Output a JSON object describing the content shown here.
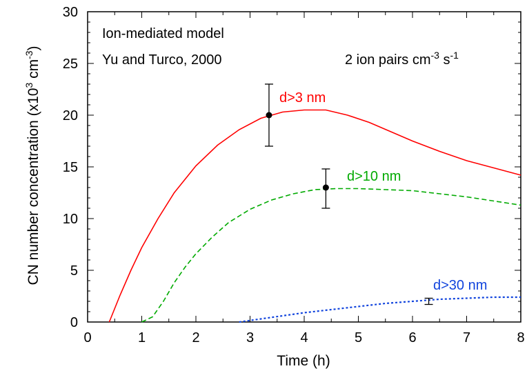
{
  "chart_data": {
    "type": "line",
    "xlabel": "Time (h)",
    "ylabel": "CN number concentration (x10",
    "ylabel_sup1": "3",
    "ylabel_mid": " cm",
    "ylabel_sup2": "-3",
    "ylabel_end": ")",
    "xlim": [
      0,
      8
    ],
    "ylim": [
      0,
      30
    ],
    "xticks": [
      "0",
      "1",
      "2",
      "3",
      "4",
      "5",
      "6",
      "7",
      "8"
    ],
    "yticks": [
      "0",
      "5",
      "10",
      "15",
      "20",
      "25",
      "30"
    ],
    "annotations": {
      "model_line1": "Ion-mediated model",
      "model_line2": "Yu and Turco, 2000",
      "rate_prefix": "2 ion pairs cm",
      "rate_sup1": "-3",
      "rate_mid": " s",
      "rate_sup2": "-1"
    },
    "series": [
      {
        "name": "d>3 nm",
        "color": "#ff0000",
        "style": "solid",
        "x": [
          0.4,
          0.6,
          0.8,
          1.0,
          1.3,
          1.6,
          2.0,
          2.4,
          2.8,
          3.2,
          3.6,
          4.0,
          4.4,
          4.8,
          5.2,
          5.6,
          6.0,
          6.5,
          7.0,
          7.5,
          8.0
        ],
        "values": [
          0.0,
          2.6,
          5.0,
          7.2,
          10.0,
          12.5,
          15.1,
          17.1,
          18.6,
          19.7,
          20.3,
          20.5,
          20.5,
          20.0,
          19.3,
          18.4,
          17.5,
          16.5,
          15.6,
          14.9,
          14.2
        ]
      },
      {
        "name": "d>10 nm",
        "color": "#00aa00",
        "style": "dashed",
        "x": [
          1.0,
          1.2,
          1.4,
          1.6,
          1.8,
          2.0,
          2.3,
          2.6,
          3.0,
          3.4,
          3.8,
          4.2,
          4.6,
          5.0,
          5.5,
          6.0,
          6.5,
          7.0,
          7.5,
          8.0
        ],
        "values": [
          0.0,
          0.5,
          2.0,
          3.8,
          5.3,
          6.6,
          8.2,
          9.6,
          10.9,
          11.8,
          12.4,
          12.8,
          12.9,
          12.9,
          12.8,
          12.7,
          12.4,
          12.1,
          11.7,
          11.3
        ]
      },
      {
        "name": "d>30 nm",
        "color": "#1144dd",
        "style": "dotted",
        "x": [
          2.8,
          3.2,
          3.6,
          4.0,
          4.5,
          5.0,
          5.5,
          6.0,
          6.5,
          7.0,
          7.5,
          8.0
        ],
        "values": [
          0.0,
          0.3,
          0.6,
          0.9,
          1.2,
          1.5,
          1.8,
          2.0,
          2.2,
          2.3,
          2.4,
          2.4
        ]
      }
    ],
    "observations": [
      {
        "x": 3.35,
        "y": 20.0,
        "ylow": 17.0,
        "yhigh": 23.0,
        "marker": true
      },
      {
        "x": 4.4,
        "y": 13.0,
        "ylow": 11.0,
        "yhigh": 14.8,
        "marker": true
      },
      {
        "x": 6.3,
        "y": 2.0,
        "ylow": 1.7,
        "yhigh": 2.3,
        "marker": false
      }
    ],
    "grid": false
  }
}
